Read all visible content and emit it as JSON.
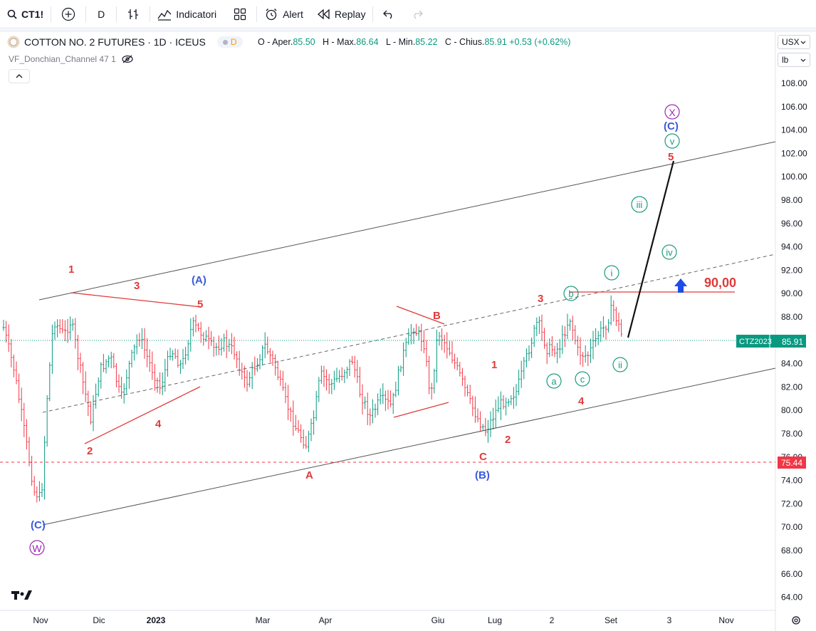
{
  "toolbar": {
    "symbol": "CT1!",
    "interval": "D",
    "indicators": "Indicatori",
    "alert": "Alert",
    "replay": "Replay"
  },
  "legend": {
    "title": "COTTON NO. 2 FUTURES · 1D · ICEUS",
    "delay_badge": "D",
    "o_label": "O - Aper.",
    "o_val": "85.50",
    "h_label": "H - Max.",
    "h_val": "86.64",
    "l_label": "L - Min.",
    "l_val": "85.22",
    "c_label": "C - Chius.",
    "c_val": "85.91",
    "change": "+0.53 (+0.62%)",
    "indicator": "VF_Donchian_Channel 47 1"
  },
  "currency": "USX",
  "unit": "lb",
  "colors": {
    "up": "#089981",
    "down": "#f23645",
    "wave_red": "#e03a3a",
    "wave_blue": "#3a5bd9",
    "wave_green": "#1b9a7e",
    "wave_purple": "#9c27b0"
  },
  "price_axis": {
    "ticks": [
      "108.00",
      "106.00",
      "104.00",
      "102.00",
      "100.00",
      "98.00",
      "96.00",
      "94.00",
      "92.00",
      "90.00",
      "88.00",
      "86.00",
      "84.00",
      "82.00",
      "80.00",
      "78.00",
      "76.00",
      "74.00",
      "72.00",
      "70.00",
      "68.00",
      "66.00",
      "64.00"
    ],
    "last_symbol": "CTZ2023",
    "last_price": "85.91",
    "level_price": "75.44"
  },
  "time_axis": [
    "Nov",
    "Dic",
    "2023",
    "Mar",
    "Apr",
    "Giu",
    "Lug",
    "2",
    "Set",
    "3",
    "Nov"
  ],
  "annotations": {
    "target_label": "90,00",
    "waves": {
      "red_1": "1",
      "red_3": "3",
      "red_5": "5",
      "red_2": "2",
      "red_4": "4",
      "red_B": "B",
      "red_A": "A",
      "red_C": "C",
      "red_1b": "1",
      "red_2b": "2",
      "red_3b": "3",
      "red_4b": "4",
      "red_5b": "5",
      "blue_A": "(A)",
      "blue_B": "(B)",
      "blue_C_low": "(C)",
      "blue_C_high": "(C)",
      "green_a": "a",
      "green_b": "b",
      "green_c": "c",
      "green_i": "i",
      "green_ii": "ii",
      "green_iii": "iii",
      "green_iv": "iv",
      "green_v": "v",
      "purple_W": "W",
      "purple_X": "X"
    }
  }
}
